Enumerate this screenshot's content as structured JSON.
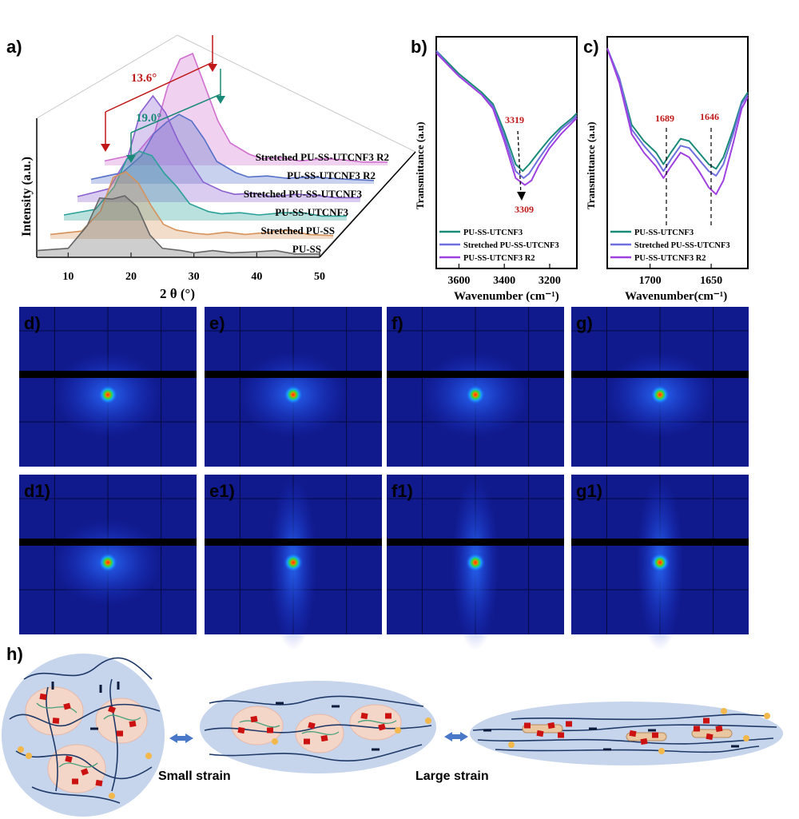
{
  "panels": {
    "a": "a)",
    "b": "b)",
    "c": "c)",
    "d": "d)",
    "e": "e)",
    "f": "f)",
    "g": "g)",
    "d1": "d1)",
    "e1": "e1)",
    "f1": "f1)",
    "g1": "g1)",
    "h": "h)"
  },
  "chart_data": [
    {
      "id": "a",
      "type": "line",
      "xlabel": "2 θ (°)",
      "ylabel": "Intensity (a.u.)",
      "xlim": [
        5,
        50
      ],
      "xticks": [
        10,
        20,
        30,
        40,
        50
      ],
      "annotations": [
        "13.6°",
        "19.0°"
      ],
      "series": [
        {
          "name": "PU-SS",
          "color": "#666666",
          "x": [
            5,
            10,
            13,
            15,
            17,
            19,
            21,
            23,
            25,
            28,
            30,
            33,
            36,
            40,
            43,
            46,
            50
          ],
          "y": [
            0.06,
            0.08,
            0.28,
            0.53,
            0.52,
            0.55,
            0.45,
            0.2,
            0.08,
            0.06,
            0.04,
            0.06,
            0.04,
            0.05,
            0.06,
            0.03,
            0.03
          ]
        },
        {
          "name": "Stretched PU-SS",
          "color": "#d6925a",
          "x": [
            5,
            10,
            13,
            15,
            17,
            19,
            21,
            23,
            25,
            28,
            30,
            33,
            36,
            40,
            43,
            46,
            50
          ],
          "y": [
            0.04,
            0.07,
            0.25,
            0.55,
            0.6,
            0.5,
            0.3,
            0.13,
            0.08,
            0.05,
            0.04,
            0.06,
            0.04,
            0.06,
            0.08,
            0.04,
            0.03
          ]
        },
        {
          "name": "PU-SS-UTCNF3",
          "color": "#2aa198",
          "x": [
            5,
            10,
            13,
            15,
            17,
            19,
            21,
            23,
            25,
            28,
            30,
            33,
            36,
            40,
            43,
            46,
            50
          ],
          "y": [
            0.05,
            0.1,
            0.3,
            0.55,
            0.62,
            0.58,
            0.42,
            0.3,
            0.15,
            0.08,
            0.06,
            0.07,
            0.05,
            0.07,
            0.07,
            0.04,
            0.04
          ]
        },
        {
          "name": "Stretched PU-SS-UTCNF3",
          "color": "#8a60d0",
          "x": [
            5,
            10,
            13,
            15,
            17,
            19,
            21,
            23,
            25,
            28,
            30,
            33,
            36,
            40,
            43,
            46,
            50
          ],
          "y": [
            0.05,
            0.12,
            0.4,
            0.8,
            0.95,
            0.8,
            0.55,
            0.35,
            0.18,
            0.1,
            0.07,
            0.08,
            0.05,
            0.07,
            0.06,
            0.04,
            0.04
          ]
        },
        {
          "name": "PU-SS-UTCNF3 R2",
          "color": "#5570c8",
          "x": [
            5,
            10,
            13,
            15,
            17,
            19,
            21,
            23,
            25,
            28,
            30,
            33,
            36,
            40,
            43,
            46,
            50
          ],
          "y": [
            0.04,
            0.1,
            0.25,
            0.45,
            0.55,
            0.62,
            0.56,
            0.4,
            0.2,
            0.1,
            0.06,
            0.07,
            0.05,
            0.06,
            0.05,
            0.04,
            0.03
          ]
        },
        {
          "name": "Stretched  PU-SS-UTCNF3 R2",
          "color": "#d070d0",
          "x": [
            5,
            10,
            13,
            15,
            17,
            19,
            21,
            23,
            25,
            28,
            30,
            33,
            36,
            40,
            43,
            46,
            50
          ],
          "y": [
            0.04,
            0.1,
            0.3,
            0.7,
            0.95,
            1.0,
            0.7,
            0.4,
            0.2,
            0.1,
            0.06,
            0.07,
            0.04,
            0.06,
            0.05,
            0.03,
            0.03
          ]
        }
      ]
    },
    {
      "id": "b",
      "type": "line",
      "xlabel": "Wavenumber (cm⁻¹)",
      "ylabel": "Transmittance (a.u)",
      "xlim": [
        3700,
        3080
      ],
      "ylim": [
        0,
        1
      ],
      "xticks": [
        3600,
        3400,
        3200
      ],
      "annotations": [
        "3319",
        "3309"
      ],
      "series": [
        {
          "name": "PU-SS-UTCNF3",
          "color": "#1a8a78",
          "x": [
            3700,
            3650,
            3600,
            3550,
            3500,
            3450,
            3400,
            3350,
            3319,
            3290,
            3250,
            3200,
            3150,
            3100,
            3080
          ],
          "y": [
            0.94,
            0.89,
            0.84,
            0.8,
            0.76,
            0.71,
            0.59,
            0.45,
            0.42,
            0.45,
            0.5,
            0.56,
            0.61,
            0.65,
            0.67
          ]
        },
        {
          "name": "Stretched PU-SS-UTCNF3",
          "color": "#6f6fe0",
          "x": [
            3700,
            3650,
            3600,
            3550,
            3500,
            3450,
            3400,
            3350,
            3315,
            3290,
            3250,
            3200,
            3150,
            3100,
            3080
          ],
          "y": [
            0.94,
            0.88,
            0.83,
            0.79,
            0.75,
            0.7,
            0.57,
            0.42,
            0.39,
            0.41,
            0.47,
            0.54,
            0.6,
            0.64,
            0.66
          ]
        },
        {
          "name": "PU-SS-UTCNF3 R2",
          "color": "#a040e0",
          "x": [
            3700,
            3650,
            3600,
            3550,
            3500,
            3450,
            3400,
            3350,
            3309,
            3280,
            3250,
            3200,
            3150,
            3100,
            3080
          ],
          "y": [
            0.93,
            0.88,
            0.83,
            0.79,
            0.75,
            0.69,
            0.55,
            0.39,
            0.36,
            0.38,
            0.44,
            0.52,
            0.58,
            0.63,
            0.65
          ]
        }
      ]
    },
    {
      "id": "c",
      "type": "line",
      "xlabel": "Wavenumber(cm⁻¹)",
      "ylabel": "Transmittance (a.u)",
      "xlim": [
        1735,
        1620
      ],
      "ylim": [
        0,
        1
      ],
      "xticks": [
        1700,
        1650
      ],
      "annotations": [
        "1689",
        "1646"
      ],
      "series": [
        {
          "name": "PU-SS-UTCNF3",
          "color": "#1a8a78",
          "x": [
            1735,
            1725,
            1715,
            1705,
            1695,
            1689,
            1683,
            1675,
            1668,
            1660,
            1652,
            1646,
            1640,
            1632,
            1625,
            1620
          ],
          "y": [
            0.95,
            0.82,
            0.62,
            0.55,
            0.5,
            0.45,
            0.5,
            0.56,
            0.55,
            0.5,
            0.45,
            0.43,
            0.48,
            0.6,
            0.72,
            0.76
          ]
        },
        {
          "name": "Stretched PU-SS-UTCNF3",
          "color": "#6f6fe0",
          "x": [
            1735,
            1725,
            1715,
            1705,
            1695,
            1689,
            1683,
            1675,
            1668,
            1660,
            1652,
            1646,
            1640,
            1632,
            1625,
            1620
          ],
          "y": [
            0.95,
            0.82,
            0.6,
            0.53,
            0.47,
            0.42,
            0.47,
            0.53,
            0.52,
            0.47,
            0.42,
            0.4,
            0.45,
            0.58,
            0.71,
            0.75
          ]
        },
        {
          "name": "PU-SS-UTCNF3 R2",
          "color": "#a040e0",
          "x": [
            1735,
            1725,
            1715,
            1705,
            1695,
            1689,
            1683,
            1675,
            1668,
            1660,
            1652,
            1646,
            1640,
            1632,
            1625,
            1620
          ],
          "y": [
            0.95,
            0.8,
            0.58,
            0.5,
            0.44,
            0.39,
            0.44,
            0.5,
            0.48,
            0.42,
            0.35,
            0.32,
            0.38,
            0.54,
            0.69,
            0.74
          ]
        }
      ]
    }
  ],
  "saxs": [
    {
      "id": "d",
      "elongation": 0
    },
    {
      "id": "e",
      "elongation": 0
    },
    {
      "id": "f",
      "elongation": 0
    },
    {
      "id": "g",
      "elongation": 0
    },
    {
      "id": "d1",
      "elongation": 0
    },
    {
      "id": "e1",
      "elongation": 1
    },
    {
      "id": "f1",
      "elongation": 1
    },
    {
      "id": "g1",
      "elongation": 1
    }
  ],
  "schematic": {
    "small_strain": "Small strain",
    "large_strain": "Large strain",
    "colors": {
      "bg": "#c6d4ec",
      "domain": "#f4d6c8",
      "chain": "#1f3a68",
      "crystal": "#cc1111",
      "dot": "#f2b84b",
      "arrow": "#4a78c8"
    }
  }
}
